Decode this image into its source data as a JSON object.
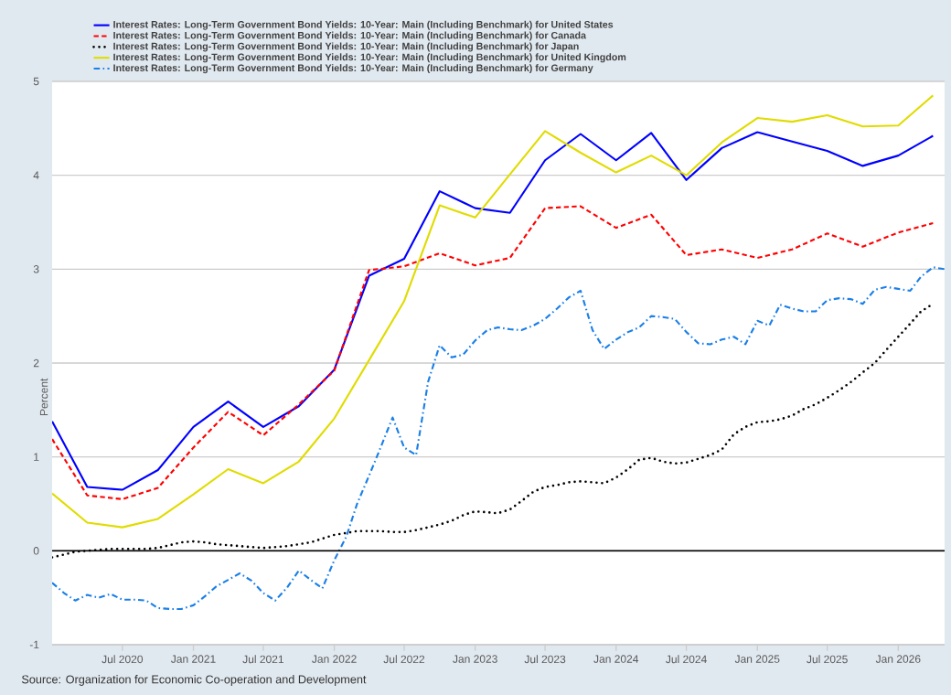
{
  "chart_data": {
    "type": "line",
    "ylabel": "Percent",
    "annotations": [
      "Source: Organization for Economic Co-operation and Development"
    ],
    "xlim": [
      "2020-01",
      "2026-05"
    ],
    "ylim": [
      -1,
      5
    ],
    "yticks": [
      -1,
      0,
      1,
      2,
      3,
      4,
      5
    ],
    "xticks": [
      {
        "value": "2020-07",
        "label": "Jul 2020"
      },
      {
        "value": "2021-01",
        "label": "Jan 2021"
      },
      {
        "value": "2021-07",
        "label": "Jul 2021"
      },
      {
        "value": "2022-01",
        "label": "Jan 2022"
      },
      {
        "value": "2022-07",
        "label": "Jul 2022"
      },
      {
        "value": "2023-01",
        "label": "Jan 2023"
      },
      {
        "value": "2023-07",
        "label": "Jul 2023"
      },
      {
        "value": "2024-01",
        "label": "Jan 2024"
      },
      {
        "value": "2024-07",
        "label": "Jul 2024"
      },
      {
        "value": "2025-01",
        "label": "Jan 2025"
      },
      {
        "value": "2025-07",
        "label": "Jul 2025"
      },
      {
        "value": "2026-01",
        "label": "Jan 2026"
      }
    ],
    "grid": "y",
    "legend": "top",
    "ref_lines": [
      {
        "axis": "y",
        "value": 0,
        "color": "#000000"
      }
    ],
    "series": [
      {
        "name": "Interest Rates: Long-Term Government Bond Yields: 10-Year: Main (Including Benchmark) for United States",
        "color": "#0000ff",
        "line_style": "solid",
        "x": [
          "2020-01",
          "2020-04",
          "2020-07",
          "2020-10",
          "2021-01",
          "2021-04",
          "2021-07",
          "2021-10",
          "2022-01",
          "2022-04",
          "2022-07",
          "2022-10",
          "2023-01",
          "2023-04",
          "2023-07",
          "2023-10",
          "2024-01",
          "2024-04",
          "2024-07",
          "2024-10",
          "2025-01",
          "2025-04",
          "2025-07",
          "2025-10",
          "2026-01",
          "2026-04"
        ],
        "values": [
          1.38,
          0.68,
          0.65,
          0.86,
          1.32,
          1.59,
          1.32,
          1.54,
          1.93,
          2.93,
          3.11,
          3.83,
          3.65,
          3.6,
          4.16,
          4.44,
          4.16,
          4.45,
          3.95,
          4.29,
          4.46,
          4.36,
          4.26,
          4.1,
          4.21,
          4.42
        ]
      },
      {
        "name": "Interest Rates: Long-Term Government Bond Yields: 10-Year: Main (Including Benchmark) for Canada",
        "color": "#ff0000",
        "line_style": "dashed",
        "x": [
          "2020-01",
          "2020-04",
          "2020-07",
          "2020-10",
          "2021-01",
          "2021-04",
          "2021-07",
          "2021-10",
          "2022-01",
          "2022-04",
          "2022-07",
          "2022-10",
          "2023-01",
          "2023-04",
          "2023-07",
          "2023-10",
          "2024-01",
          "2024-04",
          "2024-07",
          "2024-10",
          "2025-01",
          "2025-04",
          "2025-07",
          "2025-10",
          "2026-01",
          "2026-04"
        ],
        "values": [
          1.19,
          0.59,
          0.55,
          0.67,
          1.1,
          1.48,
          1.23,
          1.56,
          1.92,
          2.99,
          3.03,
          3.17,
          3.04,
          3.12,
          3.65,
          3.67,
          3.44,
          3.58,
          3.15,
          3.21,
          3.12,
          3.21,
          3.38,
          3.24,
          3.39,
          3.49
        ]
      },
      {
        "name": "Interest Rates: Long-Term Government Bond Yields: 10-Year: Main (Including Benchmark) for Japan",
        "color": "#000000",
        "line_style": "dotted",
        "x": [
          "2020-01",
          "2020-02",
          "2020-03",
          "2020-04",
          "2020-05",
          "2020-06",
          "2020-07",
          "2020-08",
          "2020-09",
          "2020-10",
          "2020-11",
          "2020-12",
          "2021-01",
          "2021-02",
          "2021-03",
          "2021-04",
          "2021-05",
          "2021-06",
          "2021-07",
          "2021-08",
          "2021-09",
          "2021-10",
          "2021-11",
          "2021-12",
          "2022-01",
          "2022-02",
          "2022-03",
          "2022-04",
          "2022-05",
          "2022-06",
          "2022-07",
          "2022-08",
          "2022-09",
          "2022-10",
          "2022-11",
          "2022-12",
          "2023-01",
          "2023-02",
          "2023-03",
          "2023-04",
          "2023-05",
          "2023-06",
          "2023-07",
          "2023-08",
          "2023-09",
          "2023-10",
          "2023-11",
          "2023-12",
          "2024-01",
          "2024-02",
          "2024-03",
          "2024-04",
          "2024-05",
          "2024-06",
          "2024-07",
          "2024-08",
          "2024-09",
          "2024-10",
          "2024-11",
          "2024-12",
          "2025-01",
          "2025-02",
          "2025-03",
          "2025-04",
          "2025-05",
          "2025-06",
          "2025-07",
          "2025-08",
          "2025-09",
          "2025-10",
          "2025-11",
          "2025-12",
          "2026-01",
          "2026-02",
          "2026-03",
          "2026-04"
        ],
        "values": [
          -0.07,
          -0.04,
          -0.01,
          0.0,
          0.01,
          0.02,
          0.02,
          0.02,
          0.02,
          0.03,
          0.06,
          0.09,
          0.1,
          0.09,
          0.07,
          0.06,
          0.05,
          0.04,
          0.03,
          0.04,
          0.05,
          0.07,
          0.09,
          0.13,
          0.17,
          0.19,
          0.21,
          0.21,
          0.21,
          0.2,
          0.2,
          0.22,
          0.25,
          0.28,
          0.32,
          0.38,
          0.42,
          0.41,
          0.4,
          0.44,
          0.53,
          0.63,
          0.68,
          0.7,
          0.73,
          0.74,
          0.73,
          0.72,
          0.78,
          0.87,
          0.97,
          0.99,
          0.95,
          0.93,
          0.94,
          0.98,
          1.02,
          1.08,
          1.24,
          1.32,
          1.37,
          1.38,
          1.4,
          1.44,
          1.51,
          1.56,
          1.63,
          1.71,
          1.8,
          1.9,
          2.0,
          2.14,
          2.28,
          2.42,
          2.55,
          2.63
        ]
      },
      {
        "name": "Interest Rates: Long-Term Government Bond Yields: 10-Year: Main (Including Benchmark) for United Kingdom",
        "color": "#e0dc00",
        "line_style": "solid",
        "x": [
          "2020-01",
          "2020-04",
          "2020-07",
          "2020-10",
          "2021-01",
          "2021-04",
          "2021-07",
          "2021-10",
          "2022-01",
          "2022-04",
          "2022-07",
          "2022-10",
          "2023-01",
          "2023-04",
          "2023-07",
          "2023-10",
          "2024-01",
          "2024-04",
          "2024-07",
          "2024-10",
          "2025-01",
          "2025-04",
          "2025-07",
          "2025-10",
          "2026-01",
          "2026-04"
        ],
        "values": [
          0.61,
          0.3,
          0.25,
          0.34,
          0.6,
          0.87,
          0.72,
          0.95,
          1.41,
          2.03,
          2.66,
          3.68,
          3.55,
          4.01,
          4.47,
          4.24,
          4.03,
          4.21,
          4.0,
          4.35,
          4.61,
          4.57,
          4.64,
          4.52,
          4.53,
          4.85
        ]
      },
      {
        "name": "Interest Rates: Long-Term Government Bond Yields: 10-Year: Main (Including Benchmark) for Germany",
        "color": "#1a7fe8",
        "line_style": "dashdot",
        "x": [
          "2020-01",
          "2020-02",
          "2020-03",
          "2020-04",
          "2020-05",
          "2020-06",
          "2020-07",
          "2020-08",
          "2020-09",
          "2020-10",
          "2020-11",
          "2020-12",
          "2021-01",
          "2021-02",
          "2021-03",
          "2021-04",
          "2021-05",
          "2021-06",
          "2021-07",
          "2021-08",
          "2021-09",
          "2021-10",
          "2021-11",
          "2021-12",
          "2022-01",
          "2022-02",
          "2022-03",
          "2022-04",
          "2022-05",
          "2022-06",
          "2022-07",
          "2022-08",
          "2022-09",
          "2022-10",
          "2022-11",
          "2022-12",
          "2023-01",
          "2023-02",
          "2023-03",
          "2023-04",
          "2023-05",
          "2023-06",
          "2023-07",
          "2023-08",
          "2023-09",
          "2023-10",
          "2023-11",
          "2023-12",
          "2024-01",
          "2024-02",
          "2024-03",
          "2024-04",
          "2024-05",
          "2024-06",
          "2024-07",
          "2024-08",
          "2024-09",
          "2024-10",
          "2024-11",
          "2024-12",
          "2025-01",
          "2025-02",
          "2025-03",
          "2025-04",
          "2025-05",
          "2025-06",
          "2025-07",
          "2025-08",
          "2025-09",
          "2025-10",
          "2025-11",
          "2025-12",
          "2026-01",
          "2026-02",
          "2026-03",
          "2026-04",
          "2026-05"
        ],
        "values": [
          -0.34,
          -0.45,
          -0.53,
          -0.47,
          -0.5,
          -0.46,
          -0.52,
          -0.52,
          -0.53,
          -0.61,
          -0.62,
          -0.62,
          -0.58,
          -0.48,
          -0.38,
          -0.31,
          -0.24,
          -0.32,
          -0.45,
          -0.53,
          -0.39,
          -0.21,
          -0.31,
          -0.4,
          -0.1,
          0.15,
          0.5,
          0.8,
          1.1,
          1.42,
          1.1,
          1.02,
          1.8,
          2.19,
          2.06,
          2.09,
          2.24,
          2.35,
          2.38,
          2.36,
          2.35,
          2.4,
          2.47,
          2.58,
          2.7,
          2.77,
          2.35,
          2.15,
          2.25,
          2.33,
          2.38,
          2.5,
          2.49,
          2.47,
          2.33,
          2.21,
          2.2,
          2.25,
          2.28,
          2.2,
          2.45,
          2.4,
          2.62,
          2.58,
          2.55,
          2.55,
          2.67,
          2.69,
          2.68,
          2.63,
          2.78,
          2.81,
          2.79,
          2.77,
          2.92,
          3.02,
          3.0
        ]
      }
    ]
  }
}
